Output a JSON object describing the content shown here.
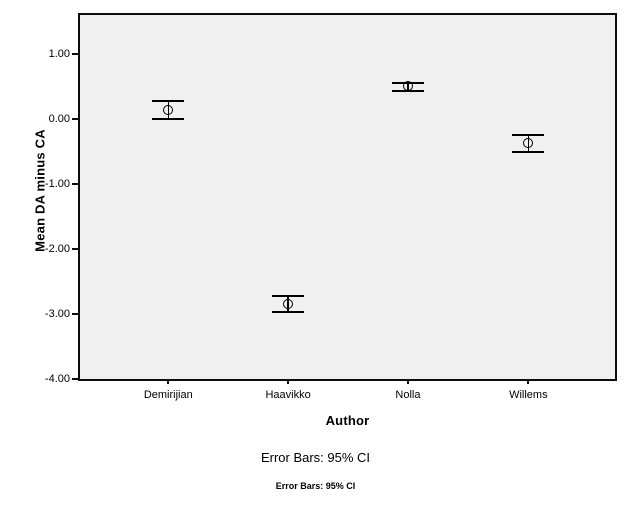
{
  "figure": {
    "y_axis": {
      "title": "Mean DA minus CA",
      "tick_labels": [
        "1.00",
        "0.00",
        "-1.00",
        "-2.00",
        "-3.00",
        "-4.00"
      ],
      "tick_values": [
        1.0,
        0.0,
        -1.0,
        -2.0,
        -3.0,
        -4.0
      ]
    },
    "x_axis": {
      "title": "Author",
      "tick_labels": [
        "Demirijian",
        "Haavikko",
        "Nolla",
        "Willems"
      ]
    },
    "caption": "Error Bars: 95% CI",
    "sub_caption": "Error Bars: 95% CI"
  },
  "chart_data": {
    "type": "scatter",
    "subtype": "error-bar-plot",
    "title": "",
    "xlabel": "Author",
    "ylabel": "Mean DA minus CA",
    "categories": [
      "Demirijian",
      "Haavikko",
      "Nolla",
      "Willems"
    ],
    "series": [
      {
        "name": "Mean DA minus CA",
        "means": [
          0.13,
          -2.85,
          0.5,
          -0.38
        ],
        "ci_lower": [
          0.0,
          -2.97,
          0.43,
          -0.51
        ],
        "ci_upper": [
          0.27,
          -2.72,
          0.56,
          -0.25
        ]
      }
    ],
    "error_bars": "95% CI",
    "ylim": [
      -4.0,
      1.6
    ],
    "yticks": [
      1.0,
      0.0,
      -1.0,
      -2.0,
      -3.0,
      -4.0
    ],
    "grid": "off",
    "legend": "none",
    "marker": "open-circle",
    "colors": {
      "plot_background": "#f0f0f0",
      "page_background": "#ffffff",
      "line": "#000000",
      "text": "#000000"
    }
  }
}
